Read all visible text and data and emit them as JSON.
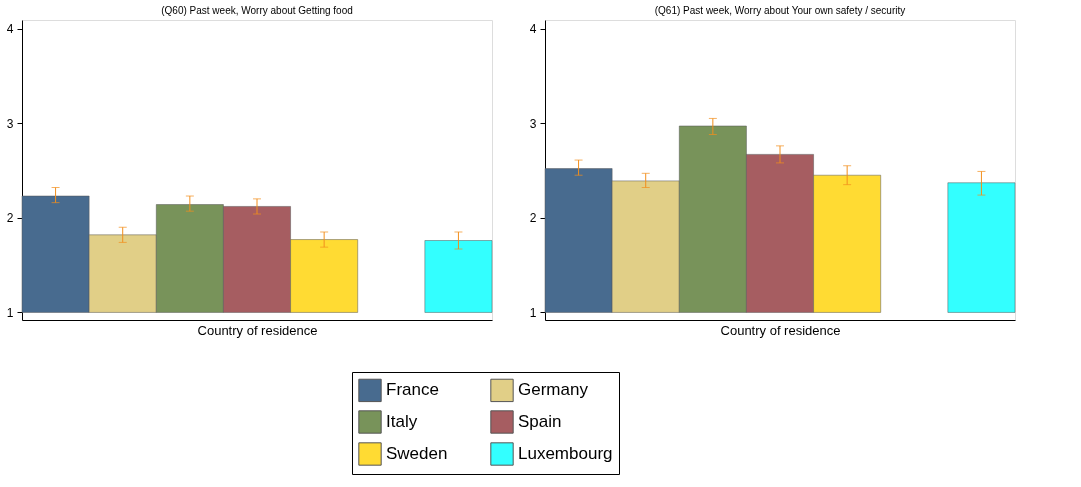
{
  "chart_data": [
    {
      "type": "bar",
      "title": "(Q60) Past week, Worry about Getting food",
      "xlabel": "Country of residence",
      "categories": [
        null,
        null,
        null,
        null,
        null,
        null,
        null
      ],
      "ylim": [
        0.92,
        4.09
      ],
      "yticks": [
        1,
        2,
        3,
        4
      ],
      "tick_labels": "y",
      "grid": false,
      "legend": "bottom",
      "series": [
        {
          "name": "France",
          "color": "#486b8f",
          "values": [
            1.23,
            null,
            null,
            null,
            null,
            null,
            null
          ],
          "base": [
            1,
            null,
            null,
            null,
            null,
            null,
            null
          ],
          "errors": [
            [
              2.16,
              2.32
            ],
            null,
            null,
            null,
            null,
            null,
            null
          ]
        },
        {
          "name": "Germany",
          "color": "#e1cf87",
          "values": [
            null,
            0.82,
            null,
            null,
            null,
            null,
            null
          ],
          "base": [
            null,
            1,
            null,
            null,
            null,
            null,
            null
          ],
          "errors": [
            null,
            [
              1.74,
              1.9
            ],
            null,
            null,
            null,
            null,
            null
          ]
        },
        {
          "name": "Italy",
          "color": "#78935a",
          "values": [
            null,
            null,
            1.14,
            null,
            null,
            null,
            null
          ],
          "base": [
            null,
            null,
            1,
            null,
            null,
            null,
            null
          ],
          "errors": [
            null,
            null,
            [
              2.07,
              2.23
            ],
            null,
            null,
            null,
            null
          ]
        },
        {
          "name": "Spain",
          "color": "#a65d61",
          "values": [
            null,
            null,
            null,
            1.12,
            null,
            null,
            null
          ],
          "base": [
            null,
            null,
            null,
            1,
            null,
            null,
            null
          ],
          "errors": [
            null,
            null,
            null,
            [
              2.04,
              2.2
            ],
            null,
            null,
            null
          ]
        },
        {
          "name": "Sweden",
          "color": "#ffdb33",
          "values": [
            null,
            null,
            null,
            null,
            0.77,
            null,
            null
          ],
          "base": [
            null,
            null,
            null,
            null,
            1,
            null,
            null
          ],
          "errors": [
            null,
            null,
            null,
            null,
            [
              1.69,
              1.85
            ],
            null,
            null
          ]
        },
        {
          "name": "Luxembourg",
          "color": "#33ffff",
          "values": [
            null,
            null,
            null,
            null,
            null,
            null,
            0.76
          ],
          "base": [
            null,
            null,
            null,
            null,
            null,
            null,
            1
          ],
          "errors": [
            null,
            null,
            null,
            null,
            null,
            null,
            [
              1.67,
              1.85
            ]
          ]
        }
      ]
    },
    {
      "type": "bar",
      "title": "(Q61) Past week, Worry about Your own safety / security",
      "xlabel": "Country of residence",
      "categories": [
        null,
        null,
        null,
        null,
        null,
        null,
        null
      ],
      "ylim": [
        0.92,
        4.09
      ],
      "yticks": [
        1,
        2,
        3,
        4
      ],
      "tick_labels": "y",
      "grid": false,
      "legend": "bottom",
      "series": [
        {
          "name": "France",
          "color": "#486b8f",
          "values": [
            1.52,
            null,
            null,
            null,
            null,
            null,
            null
          ],
          "base": [
            1,
            null,
            null,
            null,
            null,
            null,
            null
          ],
          "errors": [
            [
              2.45,
              2.61
            ],
            null,
            null,
            null,
            null,
            null,
            null
          ]
        },
        {
          "name": "Germany",
          "color": "#e1cf87",
          "values": [
            null,
            1.39,
            null,
            null,
            null,
            null,
            null
          ],
          "base": [
            null,
            1,
            null,
            null,
            null,
            null,
            null
          ],
          "errors": [
            null,
            [
              2.32,
              2.47
            ],
            null,
            null,
            null,
            null,
            null
          ]
        },
        {
          "name": "Italy",
          "color": "#78935a",
          "values": [
            null,
            null,
            1.97,
            null,
            null,
            null,
            null
          ],
          "base": [
            null,
            null,
            1,
            null,
            null,
            null,
            null
          ],
          "errors": [
            null,
            null,
            [
              2.88,
              3.05
            ],
            null,
            null,
            null,
            null
          ]
        },
        {
          "name": "Spain",
          "color": "#a65d61",
          "values": [
            null,
            null,
            null,
            1.67,
            null,
            null,
            null
          ],
          "base": [
            null,
            null,
            null,
            1,
            null,
            null,
            null
          ],
          "errors": [
            null,
            null,
            null,
            [
              2.58,
              2.76
            ],
            null,
            null,
            null
          ]
        },
        {
          "name": "Sweden",
          "color": "#ffdb33",
          "values": [
            null,
            null,
            null,
            null,
            1.45,
            null,
            null
          ],
          "base": [
            null,
            null,
            null,
            null,
            1,
            null,
            null
          ],
          "errors": [
            null,
            null,
            null,
            null,
            [
              2.35,
              2.55
            ],
            null,
            null
          ]
        },
        {
          "name": "Luxembourg",
          "color": "#33ffff",
          "values": [
            null,
            null,
            null,
            null,
            null,
            null,
            1.37
          ],
          "base": [
            null,
            null,
            null,
            null,
            null,
            null,
            1
          ],
          "errors": [
            null,
            null,
            null,
            null,
            null,
            null,
            [
              2.24,
              2.49
            ]
          ]
        }
      ]
    }
  ]
}
